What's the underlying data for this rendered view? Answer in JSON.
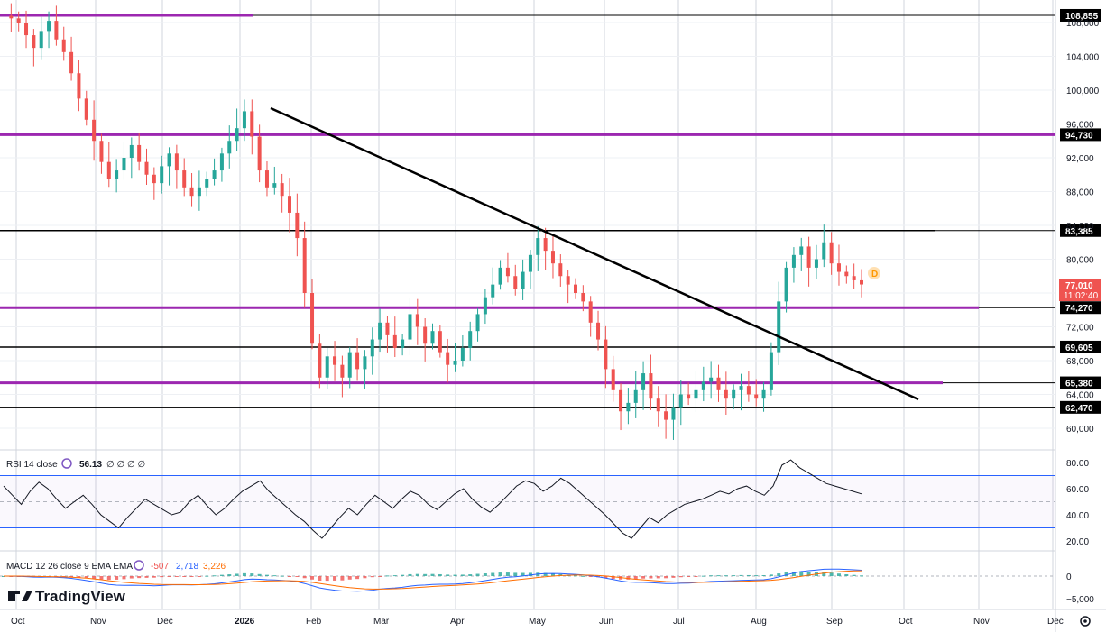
{
  "colors": {
    "up": "#26a69a",
    "down": "#ef5350",
    "grid": "#d1d4dc",
    "purple": "#9c27b0",
    "black_line": "#000000",
    "rsi_band": "#2962ff",
    "macd_line": "#2962ff",
    "signal_line": "#ff6d00",
    "hist_up": "#26a69a",
    "hist_down": "#ef5350",
    "price_label": "#ef5350",
    "badge": "#ff9800"
  },
  "branding": {
    "logo": "TradingView"
  },
  "last_price": {
    "value": "77,010",
    "countdown": "11:02:40",
    "badge": "D"
  },
  "indicators": {
    "rsi": {
      "label": "RSI 14 close",
      "value": "56.13",
      "extra": "∅ ∅ ∅ ∅",
      "levels": [
        80,
        70,
        50,
        30,
        20
      ]
    },
    "macd": {
      "label": "MACD 12 26 close 9 EMA EMA",
      "hist": "-507",
      "macd": "2,718",
      "signal": "3,226"
    }
  },
  "chart_data": {
    "type": "candlestick",
    "x_axis": {
      "ticks": [
        "Oct",
        "Nov",
        "Dec",
        "2026",
        "Feb",
        "Mar",
        "Apr",
        "May",
        "Jun",
        "Jul",
        "Aug",
        "Sep",
        "Oct",
        "Nov",
        "Dec"
      ]
    },
    "y_axis": {
      "ticks": [
        "60,000",
        "64,000",
        "68,000",
        "72,000",
        "76,000",
        "80,000",
        "84,000",
        "88,000",
        "92,000",
        "96,000",
        "100,000",
        "104,000",
        "108,000"
      ],
      "range": [
        58000,
        110000
      ]
    },
    "horizontal_levels": [
      {
        "value": 108855,
        "label": "108,855",
        "color": "purple"
      },
      {
        "value": 94730,
        "label": "94,730",
        "color": "purple"
      },
      {
        "value": 83385,
        "label": "83,385",
        "color": "black"
      },
      {
        "value": 74270,
        "label": "74,270",
        "color": "purple"
      },
      {
        "value": 69605,
        "label": "69,605",
        "color": "black"
      },
      {
        "value": 65380,
        "label": "65,380",
        "color": "purple"
      },
      {
        "value": 62470,
        "label": "62,470",
        "color": "black"
      }
    ],
    "trendline": {
      "from": {
        "month": "2026 mid-Jan",
        "price": 97800
      },
      "to": {
        "month": "mid-Oct",
        "price": 63400
      }
    },
    "approx_close_path": [
      108800,
      108500,
      108000,
      106500,
      105000,
      107000,
      108200,
      106000,
      104500,
      102000,
      99000,
      96500,
      94000,
      91500,
      89500,
      90500,
      92000,
      93500,
      91500,
      90000,
      89000,
      91000,
      92500,
      90500,
      88500,
      87500,
      88500,
      89500,
      90500,
      92500,
      94000,
      95500,
      97500,
      94500,
      90500,
      88500,
      89000,
      87500,
      85500,
      82500,
      76000,
      70000,
      66000,
      68500,
      67500,
      66000,
      69000,
      67000,
      68500,
      70500,
      72500,
      71000,
      69500,
      70500,
      73500,
      72000,
      70000,
      71500,
      69000,
      67500,
      68000,
      69500,
      71500,
      73500,
      75500,
      77000,
      79000,
      78000,
      76500,
      78500,
      80500,
      82500,
      81000,
      79500,
      78000,
      77000,
      76000,
      75000,
      72500,
      70500,
      67000,
      64500,
      62000,
      63000,
      64500,
      66500,
      63500,
      62000,
      61000,
      62500,
      64000,
      63500,
      64500,
      65500,
      66000,
      64500,
      63500,
      64500,
      65000,
      64000,
      63500,
      64500,
      69000,
      75000,
      79000,
      80500,
      81500,
      79000,
      80000,
      82000,
      79500,
      78500,
      78000,
      77500,
      77010
    ],
    "rsi_path": [
      62,
      55,
      48,
      58,
      65,
      60,
      52,
      45,
      50,
      55,
      48,
      40,
      35,
      30,
      38,
      45,
      52,
      48,
      44,
      40,
      42,
      50,
      55,
      47,
      40,
      45,
      52,
      58,
      62,
      66,
      58,
      52,
      46,
      40,
      35,
      28,
      22,
      30,
      38,
      45,
      40,
      48,
      55,
      50,
      45,
      52,
      58,
      55,
      48,
      44,
      50,
      56,
      60,
      52,
      46,
      42,
      48,
      55,
      62,
      66,
      64,
      58,
      62,
      68,
      64,
      58,
      52,
      46,
      40,
      33,
      26,
      22,
      30,
      38,
      34,
      40,
      44,
      48,
      50,
      52,
      55,
      58,
      56,
      60,
      62,
      58,
      55,
      62,
      78,
      82,
      76,
      72,
      68,
      64,
      62,
      60,
      58,
      56
    ]
  }
}
